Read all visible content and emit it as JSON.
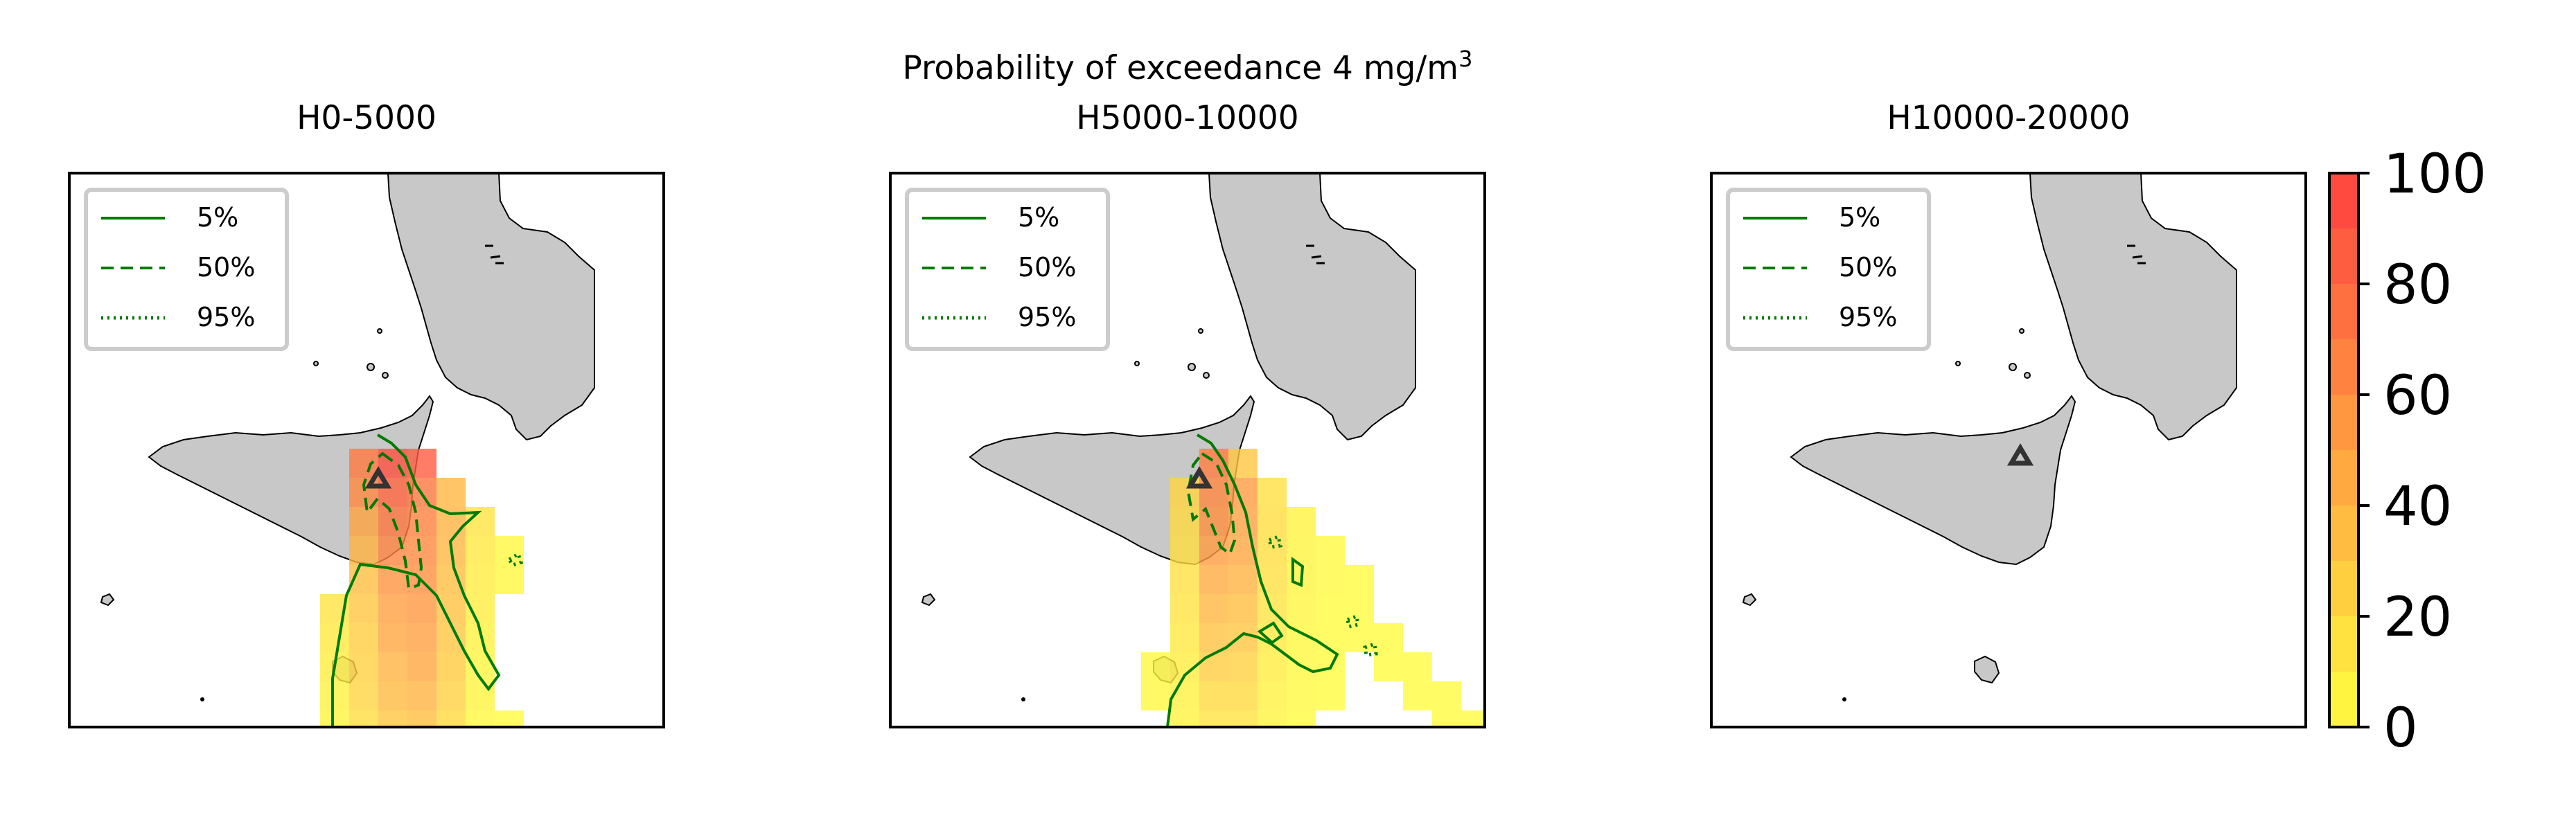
{
  "suptitle": {
    "text": "Probability of exceedance 4 mg/m",
    "superscript": "3"
  },
  "panels": [
    {
      "title": "H0-5000"
    },
    {
      "title": "H5000-10000"
    },
    {
      "title": "H10000-20000"
    }
  ],
  "legend": {
    "entries": [
      {
        "label": "5%",
        "style": "solid"
      },
      {
        "label": "50%",
        "style": "dashed"
      },
      {
        "label": "95%",
        "style": "dotted"
      }
    ]
  },
  "colorbar": {
    "ticks": [
      "0",
      "20",
      "40",
      "60",
      "80",
      "100"
    ],
    "min": 0,
    "max": 100,
    "levels": 10,
    "color_low": "#ffff40",
    "color_high": "#ff4040"
  },
  "colors": {
    "land": "#c8c8c8",
    "coast": "#000000",
    "contour": "#007a00",
    "vent": "#333333"
  },
  "chart_data": [
    {
      "type": "heatmap",
      "title": "H0-5000",
      "value_range": [
        0,
        100
      ],
      "contours": [
        "5%",
        "50%",
        "95%"
      ],
      "vent_marker": "triangle",
      "plume": [
        {
          "col": 0,
          "row": 0,
          "v": 92
        },
        {
          "col": 1,
          "row": 0,
          "v": 85
        },
        {
          "col": -1,
          "row": 0,
          "v": 70
        },
        {
          "col": -1,
          "row": 1,
          "v": 62
        },
        {
          "col": 0,
          "row": 1,
          "v": 80
        },
        {
          "col": 1,
          "row": 1,
          "v": 72
        },
        {
          "col": 2,
          "row": 1,
          "v": 38
        },
        {
          "col": -1,
          "row": 2,
          "v": 48
        },
        {
          "col": 0,
          "row": 2,
          "v": 72
        },
        {
          "col": 1,
          "row": 2,
          "v": 66
        },
        {
          "col": 2,
          "row": 2,
          "v": 40
        },
        {
          "col": 3,
          "row": 2,
          "v": 14
        },
        {
          "col": -1,
          "row": 3,
          "v": 40
        },
        {
          "col": 0,
          "row": 3,
          "v": 64
        },
        {
          "col": 1,
          "row": 3,
          "v": 62
        },
        {
          "col": 2,
          "row": 3,
          "v": 38
        },
        {
          "col": 3,
          "row": 3,
          "v": 12
        },
        {
          "col": 4,
          "row": 3,
          "v": 4
        },
        {
          "col": -1,
          "row": 4,
          "v": 34
        },
        {
          "col": 0,
          "row": 4,
          "v": 56
        },
        {
          "col": 1,
          "row": 4,
          "v": 58
        },
        {
          "col": 2,
          "row": 4,
          "v": 34
        },
        {
          "col": 3,
          "row": 4,
          "v": 10
        },
        {
          "col": 4,
          "row": 4,
          "v": 4
        },
        {
          "col": -2,
          "row": 5,
          "v": 14
        },
        {
          "col": -1,
          "row": 5,
          "v": 30
        },
        {
          "col": 0,
          "row": 5,
          "v": 50
        },
        {
          "col": 1,
          "row": 5,
          "v": 54
        },
        {
          "col": 2,
          "row": 5,
          "v": 32
        },
        {
          "col": 3,
          "row": 5,
          "v": 10
        },
        {
          "col": -2,
          "row": 6,
          "v": 12
        },
        {
          "col": -1,
          "row": 6,
          "v": 26
        },
        {
          "col": 0,
          "row": 6,
          "v": 46
        },
        {
          "col": 1,
          "row": 6,
          "v": 50
        },
        {
          "col": 2,
          "row": 6,
          "v": 30
        },
        {
          "col": 3,
          "row": 6,
          "v": 8
        },
        {
          "col": -2,
          "row": 7,
          "v": 10
        },
        {
          "col": -1,
          "row": 7,
          "v": 24
        },
        {
          "col": 0,
          "row": 7,
          "v": 40
        },
        {
          "col": 1,
          "row": 7,
          "v": 46
        },
        {
          "col": 2,
          "row": 7,
          "v": 28
        },
        {
          "col": 3,
          "row": 7,
          "v": 6
        },
        {
          "col": -2,
          "row": 8,
          "v": 8
        },
        {
          "col": -1,
          "row": 8,
          "v": 22
        },
        {
          "col": 0,
          "row": 8,
          "v": 36
        },
        {
          "col": 1,
          "row": 8,
          "v": 40
        },
        {
          "col": 2,
          "row": 8,
          "v": 24
        },
        {
          "col": 3,
          "row": 8,
          "v": 6
        },
        {
          "col": -2,
          "row": 9,
          "v": 6
        },
        {
          "col": -1,
          "row": 9,
          "v": 18
        },
        {
          "col": 0,
          "row": 9,
          "v": 30
        },
        {
          "col": 1,
          "row": 9,
          "v": 34
        },
        {
          "col": 2,
          "row": 9,
          "v": 20
        },
        {
          "col": 3,
          "row": 9,
          "v": 4
        },
        {
          "col": 4,
          "row": 9,
          "v": 2
        },
        {
          "col": -2,
          "row": 10,
          "v": 4
        },
        {
          "col": -1,
          "row": 10,
          "v": 14
        },
        {
          "col": 0,
          "row": 10,
          "v": 24
        },
        {
          "col": 1,
          "row": 10,
          "v": 26
        },
        {
          "col": 2,
          "row": 10,
          "v": 14
        },
        {
          "col": 3,
          "row": 10,
          "v": 3
        },
        {
          "col": 4,
          "row": 10,
          "v": 2
        },
        {
          "col": 5,
          "row": 10,
          "v": 2
        },
        {
          "col": -1,
          "row": 11,
          "v": 8
        },
        {
          "col": 0,
          "row": 11,
          "v": 14
        },
        {
          "col": 1,
          "row": 11,
          "v": 16
        },
        {
          "col": 2,
          "row": 11,
          "v": 8
        },
        {
          "col": 3,
          "row": 11,
          "v": 2
        }
      ]
    },
    {
      "type": "heatmap",
      "title": "H5000-10000",
      "value_range": [
        0,
        100
      ],
      "contours": [
        "5%",
        "50%",
        "95%"
      ],
      "vent_marker": "triangle",
      "plume": [
        {
          "col": 0,
          "row": 0,
          "v": 68
        },
        {
          "col": 1,
          "row": 0,
          "v": 30
        },
        {
          "col": -1,
          "row": 1,
          "v": 22
        },
        {
          "col": 0,
          "row": 1,
          "v": 62
        },
        {
          "col": 1,
          "row": 1,
          "v": 52
        },
        {
          "col": 2,
          "row": 1,
          "v": 16
        },
        {
          "col": -1,
          "row": 2,
          "v": 20
        },
        {
          "col": 0,
          "row": 2,
          "v": 58
        },
        {
          "col": 1,
          "row": 2,
          "v": 50
        },
        {
          "col": 2,
          "row": 2,
          "v": 18
        },
        {
          "col": 3,
          "row": 2,
          "v": 6
        },
        {
          "col": -1,
          "row": 3,
          "v": 18
        },
        {
          "col": 0,
          "row": 3,
          "v": 52
        },
        {
          "col": 1,
          "row": 3,
          "v": 46
        },
        {
          "col": 2,
          "row": 3,
          "v": 18
        },
        {
          "col": 3,
          "row": 3,
          "v": 6
        },
        {
          "col": 4,
          "row": 3,
          "v": 3
        },
        {
          "col": -1,
          "row": 4,
          "v": 16
        },
        {
          "col": 0,
          "row": 4,
          "v": 44
        },
        {
          "col": 1,
          "row": 4,
          "v": 40
        },
        {
          "col": 2,
          "row": 4,
          "v": 16
        },
        {
          "col": 3,
          "row": 4,
          "v": 6
        },
        {
          "col": 4,
          "row": 4,
          "v": 3
        },
        {
          "col": 5,
          "row": 4,
          "v": 2
        },
        {
          "col": -1,
          "row": 5,
          "v": 14
        },
        {
          "col": 0,
          "row": 5,
          "v": 38
        },
        {
          "col": 1,
          "row": 5,
          "v": 34
        },
        {
          "col": 2,
          "row": 5,
          "v": 14
        },
        {
          "col": 3,
          "row": 5,
          "v": 5
        },
        {
          "col": 4,
          "row": 5,
          "v": 2
        },
        {
          "col": 5,
          "row": 5,
          "v": 2
        },
        {
          "col": -1,
          "row": 6,
          "v": 12
        },
        {
          "col": 0,
          "row": 6,
          "v": 32
        },
        {
          "col": 1,
          "row": 6,
          "v": 30
        },
        {
          "col": 2,
          "row": 6,
          "v": 12
        },
        {
          "col": 3,
          "row": 6,
          "v": 4
        },
        {
          "col": 4,
          "row": 6,
          "v": 2
        },
        {
          "col": 5,
          "row": 6,
          "v": 2
        },
        {
          "col": 6,
          "row": 6,
          "v": 2
        },
        {
          "col": -2,
          "row": 7,
          "v": 4
        },
        {
          "col": -1,
          "row": 7,
          "v": 10
        },
        {
          "col": 0,
          "row": 7,
          "v": 26
        },
        {
          "col": 1,
          "row": 7,
          "v": 24
        },
        {
          "col": 2,
          "row": 7,
          "v": 10
        },
        {
          "col": 3,
          "row": 7,
          "v": 4
        },
        {
          "col": 4,
          "row": 7,
          "v": 2
        },
        {
          "col": 6,
          "row": 7,
          "v": 2
        },
        {
          "col": 7,
          "row": 7,
          "v": 2
        },
        {
          "col": -2,
          "row": 8,
          "v": 4
        },
        {
          "col": -1,
          "row": 8,
          "v": 8
        },
        {
          "col": 0,
          "row": 8,
          "v": 20
        },
        {
          "col": 1,
          "row": 8,
          "v": 20
        },
        {
          "col": 2,
          "row": 8,
          "v": 8
        },
        {
          "col": 3,
          "row": 8,
          "v": 3
        },
        {
          "col": 4,
          "row": 8,
          "v": 2
        },
        {
          "col": 7,
          "row": 8,
          "v": 2
        },
        {
          "col": 8,
          "row": 8,
          "v": 2
        },
        {
          "col": -1,
          "row": 9,
          "v": 6
        },
        {
          "col": 0,
          "row": 9,
          "v": 14
        },
        {
          "col": 1,
          "row": 9,
          "v": 14
        },
        {
          "col": 2,
          "row": 9,
          "v": 6
        },
        {
          "col": 3,
          "row": 9,
          "v": 2
        },
        {
          "col": 8,
          "row": 9,
          "v": 2
        },
        {
          "col": 9,
          "row": 9,
          "v": 2
        },
        {
          "col": -1,
          "row": 10,
          "v": 4
        },
        {
          "col": 0,
          "row": 10,
          "v": 8
        },
        {
          "col": 1,
          "row": 10,
          "v": 8
        },
        {
          "col": 2,
          "row": 10,
          "v": 4
        },
        {
          "col": 3,
          "row": 10,
          "v": 2
        }
      ]
    },
    {
      "type": "heatmap",
      "title": "H10000-20000",
      "value_range": [
        0,
        100
      ],
      "contours": [
        "5%",
        "50%",
        "95%"
      ],
      "vent_marker": "triangle",
      "plume": []
    }
  ]
}
